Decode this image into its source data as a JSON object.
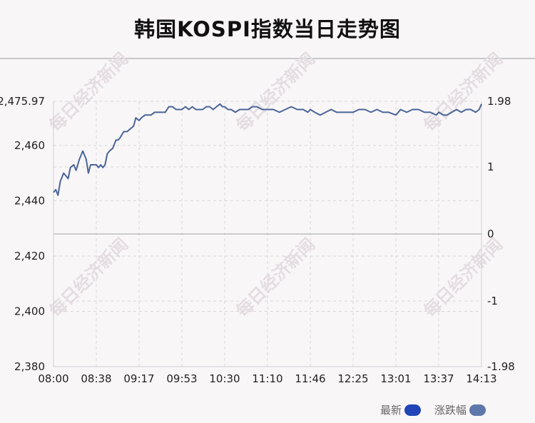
{
  "title": "韩国KOSPI指数当日走势图",
  "watermark": "每日经济新闻",
  "colors": {
    "line": "#4a6597",
    "grid": "#d9d6d9",
    "axis": "#cfcfcf",
    "zero_line": "#bdbdbd",
    "legend_latest": "#1f45b7",
    "legend_change": "#5f78ab",
    "watermark": "#e4dde2"
  },
  "legend": [
    {
      "label": "最新",
      "color": "#1f45b7"
    },
    {
      "label": "涨跌幅",
      "color": "#5f78ab"
    }
  ],
  "chart_data": {
    "type": "line",
    "title": "韩国KOSPI指数当日走势图",
    "xlabel": "",
    "ylabel": "",
    "x_ticks": [
      "08:00",
      "08:38",
      "09:17",
      "09:53",
      "10:30",
      "11:10",
      "11:46",
      "12:25",
      "13:01",
      "13:37",
      "14:13"
    ],
    "y_left_ticks": [
      2475.97,
      2460,
      2440,
      2420,
      2400,
      2380
    ],
    "y_left_tick_labels": [
      "2,475.97",
      "2,460",
      "2,440",
      "2,420",
      "2,400",
      "2,380"
    ],
    "y_left_range": [
      2380,
      2475.97
    ],
    "y_right_ticks": [
      "1.98",
      "1",
      "0",
      "-1",
      "-1.98"
    ],
    "y_right_range": [
      -1.98,
      1.98
    ],
    "series": [
      {
        "name": "最新",
        "x": [
          "08:00",
          "08:02",
          "08:04",
          "08:06",
          "08:09",
          "08:11",
          "08:13",
          "08:15",
          "08:18",
          "08:20",
          "08:23",
          "08:26",
          "08:29",
          "08:31",
          "08:33",
          "08:35",
          "08:38",
          "08:40",
          "08:42",
          "08:44",
          "08:46",
          "08:48",
          "08:50",
          "08:53",
          "08:56",
          "08:58",
          "09:00",
          "09:03",
          "09:06",
          "09:09",
          "09:12",
          "09:14",
          "09:17",
          "09:19",
          "09:22",
          "09:24",
          "09:27",
          "09:30",
          "09:33",
          "09:36",
          "09:39",
          "09:42",
          "09:45",
          "09:48",
          "09:51",
          "09:53",
          "09:56",
          "09:59",
          "10:02",
          "10:05",
          "10:08",
          "10:11",
          "10:14",
          "10:17",
          "10:20",
          "10:23",
          "10:26",
          "10:28",
          "10:30",
          "10:33",
          "10:36",
          "10:40",
          "10:44",
          "10:48",
          "10:52",
          "10:56",
          "11:00",
          "11:05",
          "11:10",
          "11:15",
          "11:20",
          "11:25",
          "11:30",
          "11:35",
          "11:40",
          "11:44",
          "11:46",
          "11:50",
          "11:55",
          "12:00",
          "12:05",
          "12:10",
          "12:15",
          "12:20",
          "12:25",
          "12:30",
          "12:35",
          "12:40",
          "12:45",
          "12:50",
          "12:55",
          "13:01",
          "13:05",
          "13:10",
          "13:15",
          "13:20",
          "13:25",
          "13:30",
          "13:35",
          "13:37",
          "13:41",
          "13:44",
          "13:48",
          "13:52",
          "13:56",
          "14:00",
          "14:04",
          "14:08",
          "14:11",
          "14:13"
        ],
        "values": [
          2443,
          2444,
          2442,
          2447,
          2450,
          2449,
          2448,
          2452,
          2453,
          2451,
          2455,
          2458,
          2455,
          2450,
          2453,
          2453,
          2453,
          2452,
          2453,
          2452,
          2453,
          2457,
          2458,
          2459,
          2462,
          2462,
          2463,
          2465,
          2465,
          2466,
          2467,
          2470,
          2469,
          2470,
          2471,
          2471,
          2471,
          2472,
          2472,
          2472,
          2472,
          2474,
          2474,
          2473,
          2473,
          2473,
          2474,
          2473,
          2474,
          2473,
          2473,
          2473,
          2474,
          2474,
          2473,
          2474,
          2475,
          2474,
          2474,
          2473,
          2473,
          2472,
          2473,
          2473,
          2473,
          2474,
          2474,
          2473,
          2473,
          2473,
          2472,
          2473,
          2474,
          2473,
          2473,
          2472,
          2473,
          2472,
          2471,
          2472,
          2473,
          2472,
          2472,
          2472,
          2472,
          2473,
          2473,
          2472,
          2473,
          2472,
          2472,
          2471,
          2473,
          2472,
          2473,
          2473,
          2472,
          2472,
          2471,
          2472,
          2471,
          2471,
          2472,
          2473,
          2472,
          2473,
          2473,
          2472,
          2473,
          2475
        ]
      }
    ],
    "grid": true,
    "legend_position": "bottom-right"
  }
}
